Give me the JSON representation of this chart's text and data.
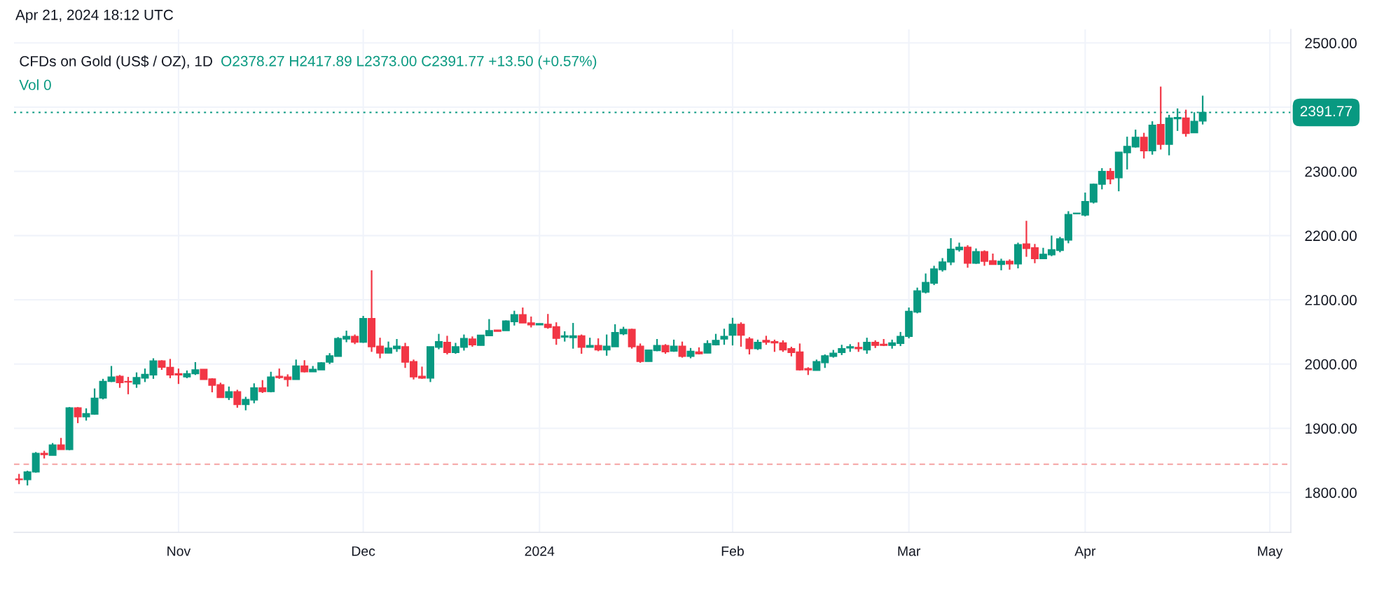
{
  "chart_data": {
    "type": "candlestick",
    "title": "CFDs on Gold (US$ / OZ), 1D",
    "annotations": [
      "Apr 21, 2024 18:12 UTC",
      "O2378.27 H2417.89 L2373.00 C2391.77 +13.50 (+0.57%)",
      "Vol 0"
    ],
    "categories": [
      null,
      null,
      null,
      null,
      null,
      null,
      null,
      null,
      null,
      null,
      null,
      null,
      null,
      null,
      null,
      null,
      null,
      null,
      null,
      "Nov",
      null,
      null,
      null,
      null,
      null,
      null,
      null,
      null,
      null,
      null,
      null,
      null,
      null,
      null,
      null,
      null,
      null,
      null,
      null,
      null,
      null,
      "Dec",
      null,
      null,
      null,
      null,
      null,
      null,
      null,
      null,
      null,
      null,
      null,
      null,
      null,
      null,
      null,
      null,
      null,
      null,
      null,
      null,
      "2024",
      null,
      null,
      null,
      null,
      null,
      null,
      null,
      null,
      null,
      null,
      null,
      null,
      null,
      null,
      null,
      null,
      null,
      null,
      null,
      null,
      null,
      null,
      "Feb",
      null,
      null,
      null,
      null,
      null,
      null,
      null,
      null,
      null,
      null,
      null,
      null,
      null,
      null,
      null,
      null,
      null,
      null,
      null,
      null,
      "Mar",
      null,
      null,
      null,
      null,
      null,
      null,
      null,
      null,
      null,
      null,
      null,
      null,
      null,
      null,
      null,
      null,
      null,
      null,
      null,
      null,
      "Apr",
      null,
      null,
      null,
      null,
      null,
      null,
      null,
      null,
      null,
      null,
      null,
      null,
      null,
      null,
      null,
      null,
      null,
      null,
      null,
      null,
      null,
      "May",
      null,
      null
    ],
    "ohlc": [
      [
        1821,
        1829,
        1813,
        1820
      ],
      [
        1820,
        1834,
        1811,
        1832
      ],
      [
        1832,
        1863,
        1831,
        1861
      ],
      [
        1861,
        1865,
        1853,
        1859
      ],
      [
        1858,
        1877,
        1858,
        1874
      ],
      [
        1874,
        1885,
        1867,
        1867
      ],
      [
        1867,
        1933,
        1866,
        1932
      ],
      [
        1932,
        1933,
        1908,
        1918
      ],
      [
        1918,
        1931,
        1912,
        1923
      ],
      [
        1922,
        1962,
        1921,
        1947
      ],
      [
        1947,
        1977,
        1945,
        1973
      ],
      [
        1973,
        1997,
        1972,
        1980
      ],
      [
        1981,
        1983,
        1963,
        1971
      ],
      [
        1973,
        1980,
        1953,
        1972
      ],
      [
        1969,
        1987,
        1963,
        1979
      ],
      [
        1978,
        1993,
        1972,
        1984
      ],
      [
        1983,
        2009,
        1977,
        2005
      ],
      [
        2005,
        2006,
        1991,
        1995
      ],
      [
        1995,
        2008,
        1978,
        1983
      ],
      [
        1985,
        1993,
        1969,
        1983
      ],
      [
        1980,
        1990,
        1978,
        1985
      ],
      [
        1985,
        2003,
        1983,
        1991
      ],
      [
        1992,
        1992,
        1976,
        1976
      ],
      [
        1977,
        1978,
        1956,
        1967
      ],
      [
        1968,
        1971,
        1948,
        1948
      ],
      [
        1948,
        1965,
        1944,
        1957
      ],
      [
        1957,
        1960,
        1932,
        1937
      ],
      [
        1937,
        1949,
        1928,
        1945
      ],
      [
        1944,
        1970,
        1939,
        1963
      ],
      [
        1963,
        1975,
        1955,
        1957
      ],
      [
        1957,
        1988,
        1956,
        1980
      ],
      [
        1981,
        1993,
        1977,
        1979
      ],
      [
        1980,
        1984,
        1965,
        1976
      ],
      [
        1976,
        2007,
        1976,
        1997
      ],
      [
        1997,
        2006,
        1987,
        1988
      ],
      [
        1988,
        1997,
        1988,
        1992
      ],
      [
        1991,
        2003,
        1991,
        2002
      ],
      [
        2003,
        2017,
        2000,
        2013
      ],
      [
        2012,
        2042,
        2012,
        2040
      ],
      [
        2039,
        2052,
        2034,
        2043
      ],
      [
        2043,
        2046,
        2031,
        2034
      ],
      [
        2034,
        2075,
        2033,
        2071
      ],
      [
        2071,
        2146,
        2019,
        2027
      ],
      [
        2028,
        2041,
        2009,
        2017
      ],
      [
        2017,
        2035,
        2017,
        2025
      ],
      [
        2024,
        2039,
        2019,
        2028
      ],
      [
        2027,
        2033,
        1994,
        2003
      ],
      [
        2004,
        2007,
        1976,
        1980
      ],
      [
        1981,
        1996,
        1977,
        1978
      ],
      [
        1978,
        2027,
        1972,
        2027
      ],
      [
        2026,
        2047,
        2023,
        2035
      ],
      [
        2034,
        2044,
        2015,
        2018
      ],
      [
        2018,
        2033,
        2016,
        2027
      ],
      [
        2026,
        2046,
        2021,
        2040
      ],
      [
        2039,
        2043,
        2027,
        2030
      ],
      [
        2029,
        2045,
        2029,
        2045
      ],
      [
        2044,
        2070,
        2044,
        2052
      ],
      [
        2053,
        2053,
        2051,
        2051
      ],
      [
        2052,
        2068,
        2052,
        2067
      ],
      [
        2066,
        2083,
        2060,
        2077
      ],
      [
        2077,
        2088,
        2064,
        2064
      ],
      [
        2064,
        2074,
        2057,
        2061
      ],
      [
        2061,
        2063,
        2061,
        2063
      ],
      [
        2062,
        2078,
        2055,
        2057
      ],
      [
        2058,
        2065,
        2030,
        2040
      ],
      [
        2042,
        2051,
        2035,
        2044
      ],
      [
        2041,
        2064,
        2024,
        2044
      ],
      [
        2044,
        2046,
        2016,
        2026
      ],
      [
        2026,
        2041,
        2026,
        2029
      ],
      [
        2029,
        2040,
        2020,
        2022
      ],
      [
        2022,
        2046,
        2013,
        2028
      ],
      [
        2027,
        2062,
        2027,
        2049
      ],
      [
        2047,
        2058,
        2045,
        2054
      ],
      [
        2054,
        2055,
        2024,
        2027
      ],
      [
        2028,
        2032,
        2002,
        2004
      ],
      [
        2004,
        2022,
        2004,
        2022
      ],
      [
        2021,
        2039,
        2020,
        2029
      ],
      [
        2029,
        2031,
        2016,
        2019
      ],
      [
        2020,
        2038,
        2019,
        2028
      ],
      [
        2028,
        2035,
        2010,
        2012
      ],
      [
        2012,
        2025,
        2009,
        2020
      ],
      [
        2019,
        2026,
        2015,
        2016
      ],
      [
        2017,
        2037,
        2017,
        2032
      ],
      [
        2030,
        2047,
        2029,
        2037
      ],
      [
        2039,
        2055,
        2030,
        2043
      ],
      [
        2045,
        2072,
        2029,
        2062
      ],
      [
        2062,
        2065,
        2027,
        2045
      ],
      [
        2039,
        2042,
        2015,
        2024
      ],
      [
        2024,
        2038,
        2022,
        2034
      ],
      [
        2037,
        2044,
        2030,
        2034
      ],
      [
        2035,
        2038,
        2019,
        2033
      ],
      [
        2033,
        2037,
        2019,
        2022
      ],
      [
        2024,
        2027,
        2012,
        2018
      ],
      [
        2019,
        2032,
        1990,
        1991
      ],
      [
        1993,
        1995,
        1983,
        1991
      ],
      [
        1990,
        2007,
        1990,
        2004
      ],
      [
        2002,
        2015,
        1994,
        2013
      ],
      [
        2012,
        2022,
        2010,
        2017
      ],
      [
        2018,
        2030,
        2014,
        2024
      ],
      [
        2025,
        2031,
        2019,
        2027
      ],
      [
        2026,
        2034,
        2019,
        2024
      ],
      [
        2022,
        2041,
        2016,
        2034
      ],
      [
        2034,
        2037,
        2025,
        2029
      ],
      [
        2031,
        2039,
        2028,
        2029
      ],
      [
        2029,
        2038,
        2024,
        2033
      ],
      [
        2032,
        2050,
        2028,
        2043
      ],
      [
        2043,
        2088,
        2040,
        2082
      ],
      [
        2081,
        2119,
        2079,
        2114
      ],
      [
        2112,
        2141,
        2110,
        2127
      ],
      [
        2126,
        2153,
        2123,
        2148
      ],
      [
        2147,
        2165,
        2144,
        2159
      ],
      [
        2159,
        2196,
        2154,
        2179
      ],
      [
        2178,
        2189,
        2175,
        2182
      ],
      [
        2182,
        2185,
        2150,
        2157
      ],
      [
        2157,
        2180,
        2156,
        2175
      ],
      [
        2175,
        2177,
        2153,
        2160
      ],
      [
        2161,
        2172,
        2155,
        2155
      ],
      [
        2155,
        2164,
        2146,
        2160
      ],
      [
        2160,
        2163,
        2147,
        2156
      ],
      [
        2156,
        2189,
        2149,
        2186
      ],
      [
        2187,
        2223,
        2167,
        2180
      ],
      [
        2181,
        2187,
        2157,
        2164
      ],
      [
        2164,
        2181,
        2164,
        2171
      ],
      [
        2170,
        2200,
        2168,
        2178
      ],
      [
        2177,
        2198,
        2174,
        2195
      ],
      [
        2193,
        2238,
        2188,
        2233
      ],
      [
        2234,
        2235,
        2234,
        2235
      ],
      [
        2232,
        2267,
        2230,
        2253
      ],
      [
        2252,
        2281,
        2250,
        2280
      ],
      [
        2280,
        2305,
        2272,
        2300
      ],
      [
        2300,
        2305,
        2280,
        2288
      ],
      [
        2290,
        2330,
        2269,
        2330
      ],
      [
        2329,
        2354,
        2303,
        2339
      ],
      [
        2338,
        2365,
        2337,
        2353
      ],
      [
        2353,
        2360,
        2320,
        2332
      ],
      [
        2332,
        2378,
        2326,
        2372
      ],
      [
        2373,
        2432,
        2334,
        2342
      ],
      [
        2342,
        2388,
        2325,
        2383
      ],
      [
        2382,
        2398,
        2363,
        2384
      ],
      [
        2383,
        2396,
        2354,
        2359
      ],
      [
        2360,
        2392,
        2360,
        2378
      ],
      [
        2378.27,
        2417.89,
        2373.0,
        2391.77
      ],
      null,
      null,
      null,
      null,
      null,
      null,
      null,
      null,
      null,
      null
    ],
    "colors": [
      "#f23645",
      "#089981",
      "#089981",
      "#f23645",
      "#089981",
      "#f23645",
      "#089981",
      "#f23645",
      "#089981",
      "#089981",
      "#089981",
      "#089981",
      "#f23645",
      "#f23645",
      "#089981",
      "#089981",
      "#089981",
      "#f23645",
      "#f23645",
      "#f23645",
      "#089981",
      "#089981",
      "#f23645",
      "#f23645",
      "#f23645",
      "#089981",
      "#f23645",
      "#089981",
      "#089981",
      "#f23645",
      "#089981",
      "#f23645",
      "#f23645",
      "#089981",
      "#f23645",
      "#089981",
      "#089981",
      "#089981",
      "#089981",
      "#089981",
      "#f23645",
      "#089981",
      "#f23645",
      "#f23645",
      "#089981",
      "#089981",
      "#f23645",
      "#f23645",
      "#f23645",
      "#089981",
      "#089981",
      "#f23645",
      "#089981",
      "#089981",
      "#f23645",
      "#089981",
      "#089981",
      "#f23645",
      "#089981",
      "#089981",
      "#f23645",
      "#f23645",
      "#089981",
      "#f23645",
      "#f23645",
      "#089981",
      "#089981",
      "#f23645",
      "#089981",
      "#f23645",
      "#089981",
      "#089981",
      "#089981",
      "#f23645",
      "#f23645",
      "#089981",
      "#089981",
      "#f23645",
      "#089981",
      "#f23645",
      "#089981",
      "#f23645",
      "#089981",
      "#089981",
      "#089981",
      "#089981",
      "#f23645",
      "#f23645",
      "#089981",
      "#f23645",
      "#f23645",
      "#f23645",
      "#f23645",
      "#f23645",
      "#f23645",
      "#089981",
      "#089981",
      "#089981",
      "#089981",
      "#089981",
      "#f23645",
      "#089981",
      "#f23645",
      "#f23645",
      "#089981",
      "#089981",
      "#089981",
      "#089981",
      "#089981",
      "#089981",
      "#089981",
      "#089981",
      "#089981",
      "#f23645",
      "#089981",
      "#f23645",
      "#f23645",
      "#089981",
      "#f23645",
      "#089981",
      "#f23645",
      "#f23645",
      "#089981",
      "#089981",
      "#089981",
      "#089981",
      "#089981",
      "#089981",
      "#089981",
      "#089981",
      "#f23645",
      "#089981",
      "#089981",
      "#089981",
      "#f23645",
      "#089981",
      "#f23645",
      "#089981",
      "#089981",
      "#f23645",
      "#089981",
      "#089981",
      null,
      null,
      null,
      null,
      null,
      null,
      null,
      null,
      null,
      null
    ],
    "ylim": [
      1738,
      2521
    ],
    "yticks": [
      {
        "value": 1800,
        "label": "1800.00"
      },
      {
        "value": 1900,
        "label": "1900.00"
      },
      {
        "value": 2000,
        "label": "2000.00"
      },
      {
        "value": 2100,
        "label": "2100.00"
      },
      {
        "value": 2200,
        "label": "2200.00"
      },
      {
        "value": 2300,
        "label": "2300.00"
      },
      {
        "value": 2400,
        "label": null
      },
      {
        "value": 2500,
        "label": "2500.00"
      }
    ],
    "ref_lines": [
      {
        "axis": "y",
        "value": 1844,
        "color": "#f5a3a3",
        "line_style": "dashed"
      },
      {
        "axis": "y",
        "value": 2391.77,
        "label": "2391.77",
        "color": "#089981",
        "line_style": "dotted"
      }
    ],
    "grid": true,
    "legend": false
  }
}
